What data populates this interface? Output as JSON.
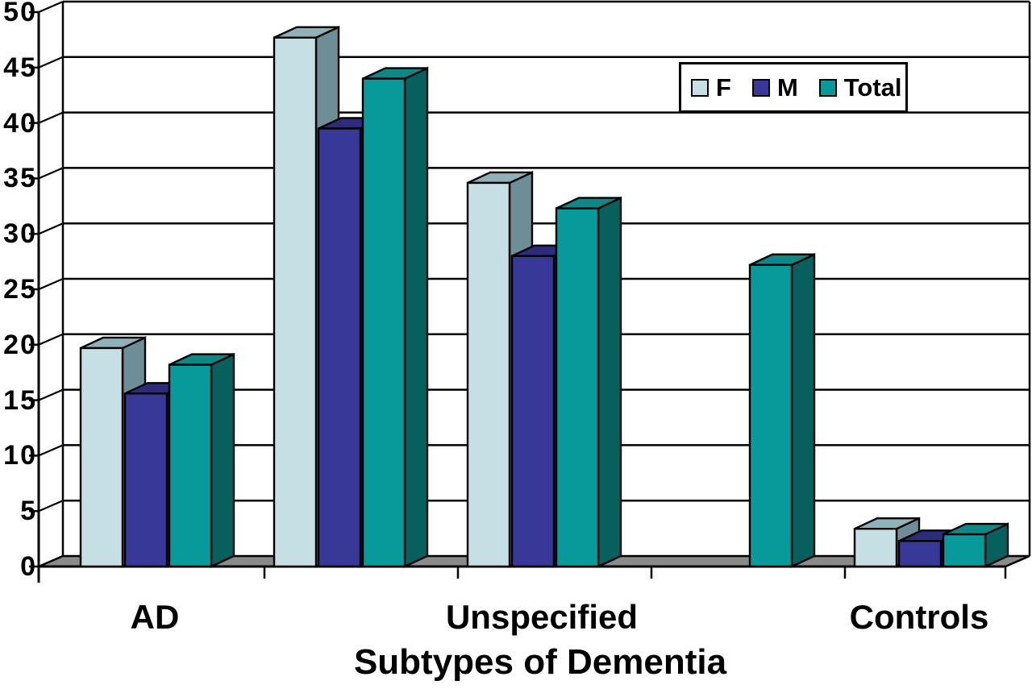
{
  "chart_data": {
    "type": "bar",
    "style": "3d-bars",
    "title": "",
    "xlabel": "Subtypes of Dementia",
    "ylabel": "",
    "ylim": [
      0,
      50
    ],
    "ytick_step": 5,
    "grid": true,
    "legend_position": "top-right",
    "categories": [
      "AD",
      "",
      "Unspecified",
      "",
      "Controls"
    ],
    "series": [
      {
        "name": "F",
        "values": [
          19.7,
          47.7,
          34.6,
          null,
          3.4
        ],
        "color": {
          "front": "#c6dfe4",
          "top": "#90b1b8",
          "side": "#6d8e96"
        }
      },
      {
        "name": "M",
        "values": [
          15.6,
          39.5,
          28.0,
          null,
          2.3
        ],
        "color": {
          "front": "#383899",
          "top": "#2c2c7a",
          "side": "#1f1f58"
        }
      },
      {
        "name": "Total",
        "values": [
          18.2,
          44.0,
          32.3,
          27.2,
          2.9
        ],
        "color": {
          "front": "#089a9a",
          "top": "#0e8786",
          "side": "#07605e"
        }
      }
    ],
    "colors": {
      "floor": "#8a8a8a",
      "line": "#000000",
      "background": "#ffffff"
    }
  }
}
